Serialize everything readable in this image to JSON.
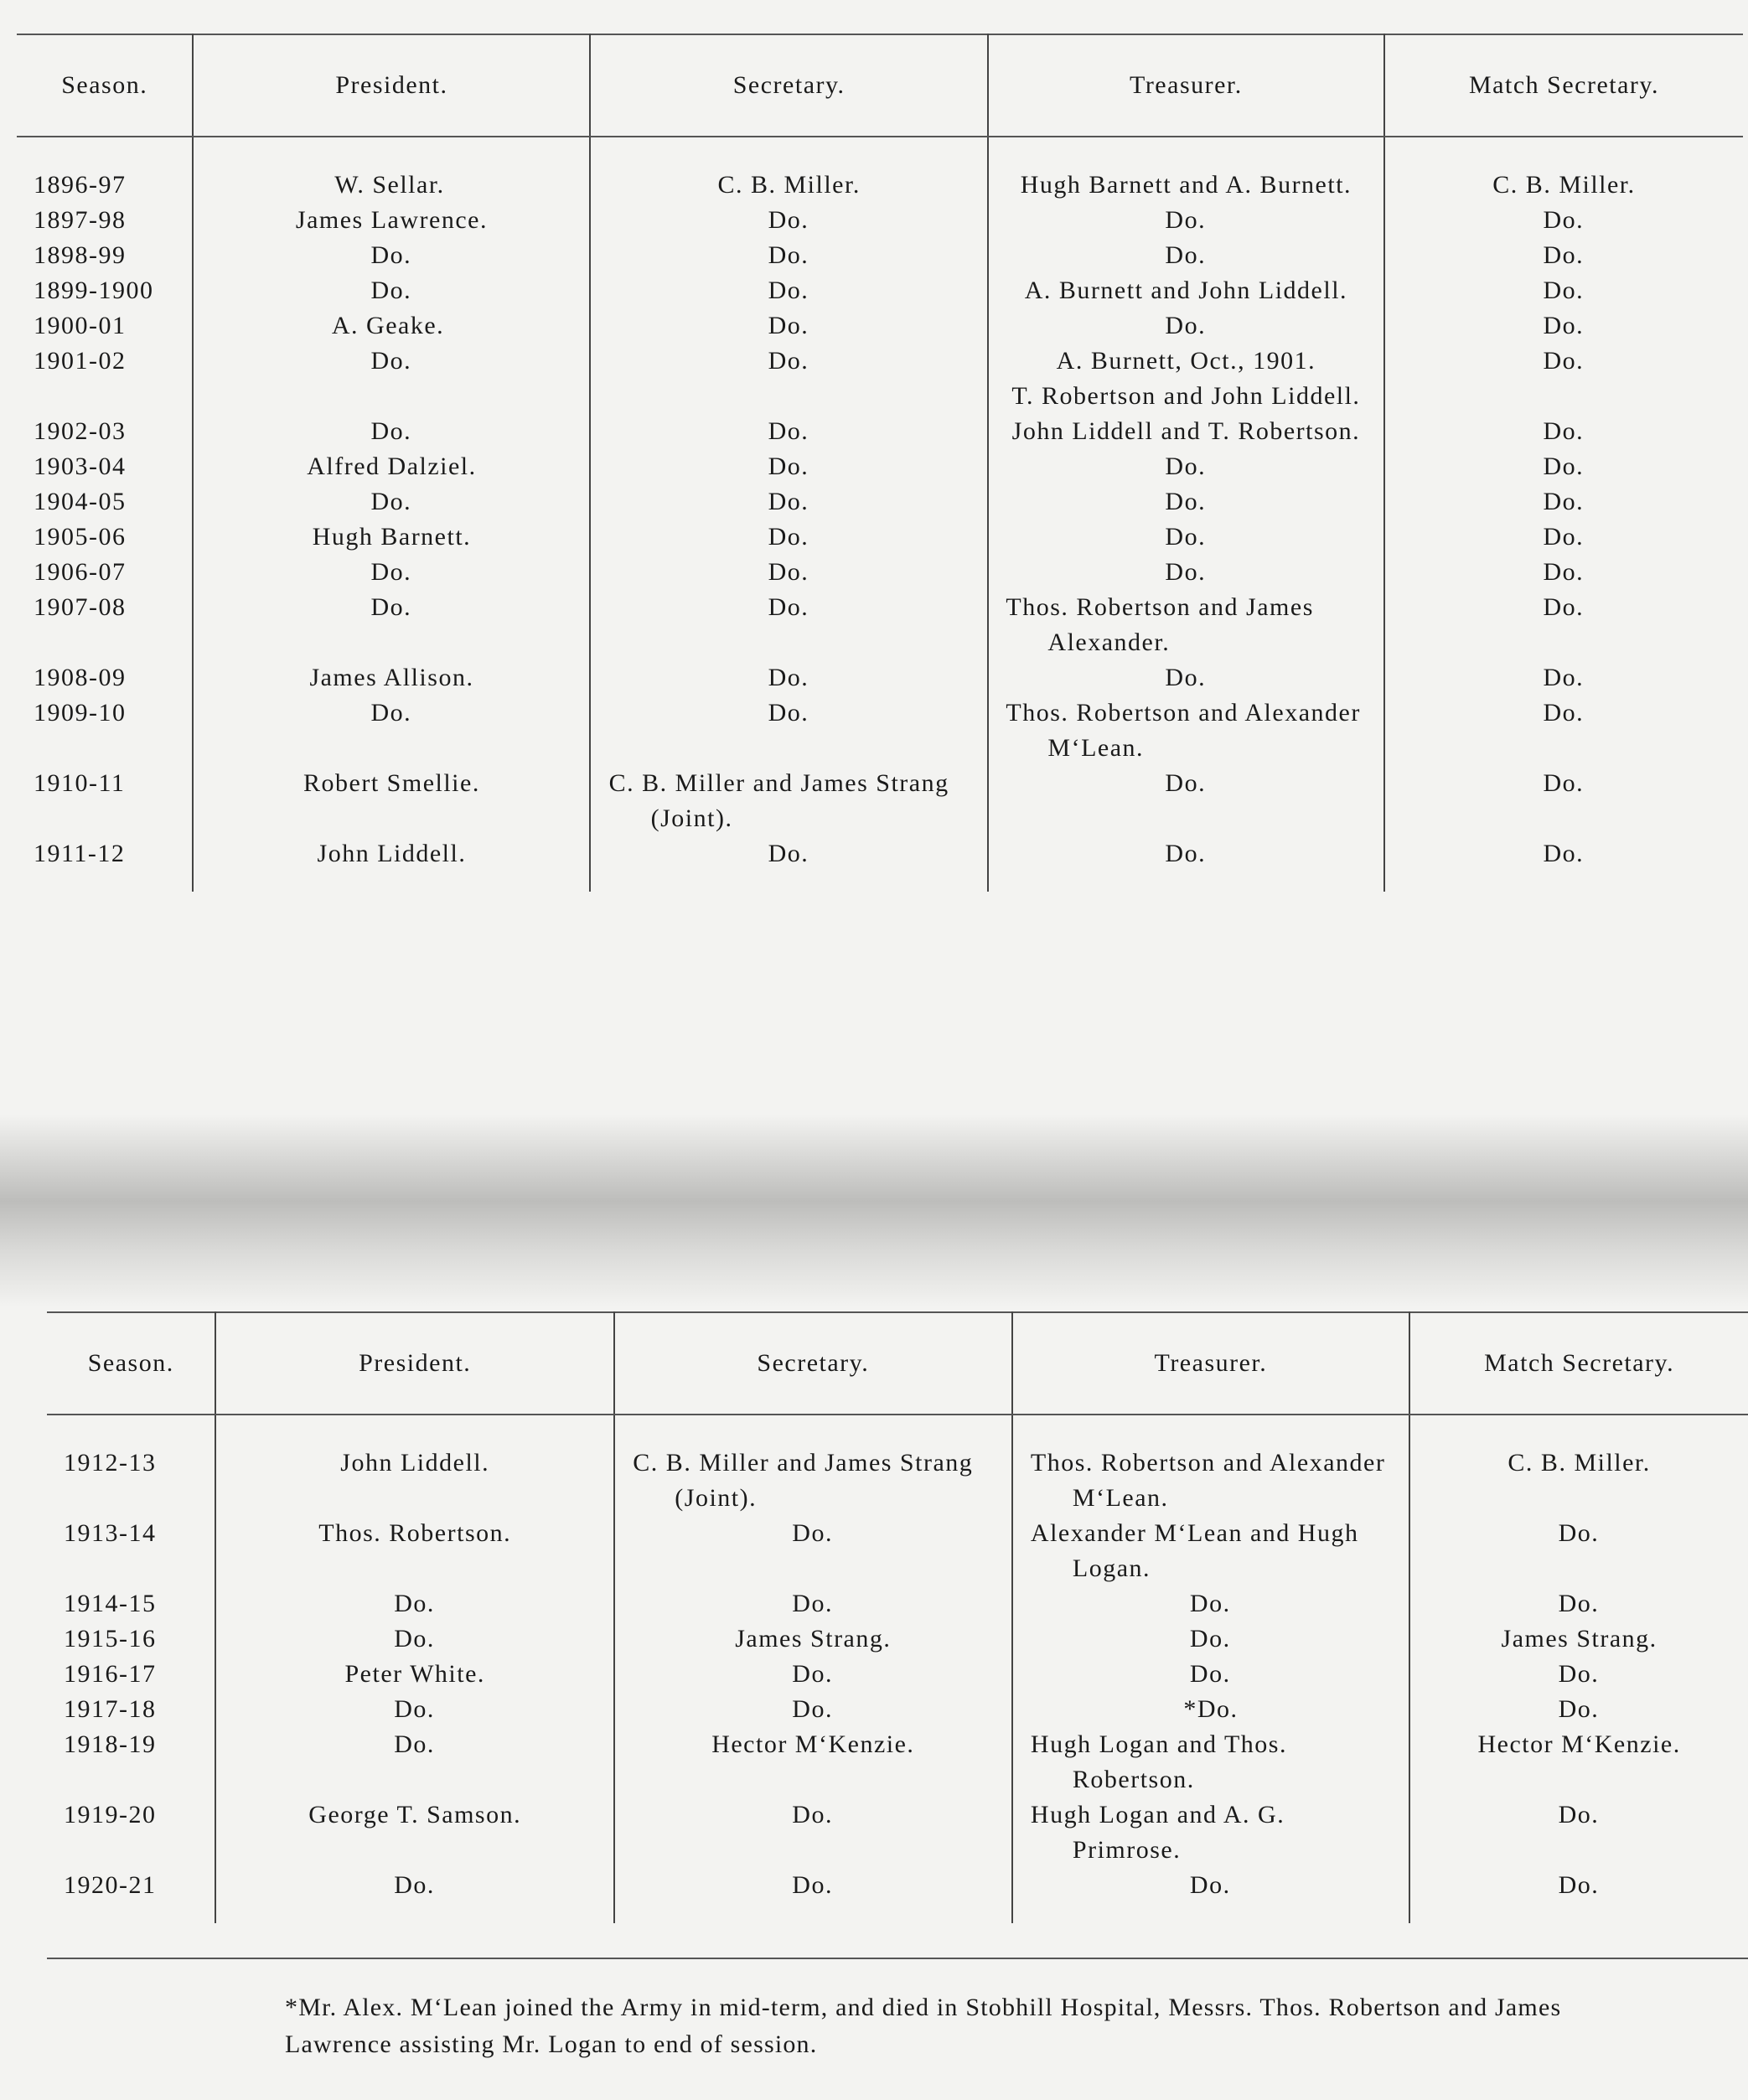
{
  "tables": [
    {
      "headers": [
        "Season.",
        "President.",
        "Secretary.",
        "Treasurer.",
        "Match Secretary."
      ],
      "rows": [
        [
          "1896-97",
          "W. Sellar.",
          "C. B. Miller.",
          "Hugh Barnett and A. Burnett.",
          "C. B. Miller."
        ],
        [
          "1897-98",
          "James Lawrence.",
          "Do.",
          "Do.",
          "Do."
        ],
        [
          "1898-99",
          "Do.",
          "Do.",
          "Do.",
          "Do."
        ],
        [
          "1899-1900",
          "Do.",
          "Do.",
          "A. Burnett and John Liddell.",
          "Do."
        ],
        [
          "1900-01",
          "A. Geake.",
          "Do.",
          "Do.",
          "Do."
        ],
        [
          "1901-02",
          "Do.",
          "Do.",
          [
            "A. Burnett, Oct., 1901.",
            "T. Robertson and John Liddell."
          ],
          "Do."
        ],
        [
          "1902-03",
          "Do.",
          "Do.",
          "John Liddell and T. Robertson.",
          "Do."
        ],
        [
          "1903-04",
          "Alfred Dalziel.",
          "Do.",
          "Do.",
          "Do."
        ],
        [
          "1904-05",
          "Do.",
          "Do.",
          "Do.",
          "Do."
        ],
        [
          "1905-06",
          "Hugh Barnett.",
          "Do.",
          "Do.",
          "Do."
        ],
        [
          "1906-07",
          "Do.",
          "Do.",
          "Do.",
          "Do."
        ],
        [
          "1907-08",
          "Do.",
          "Do.",
          "Thos. Robertson and James Alexander.",
          "Do."
        ],
        [
          "1908-09",
          "James Allison.",
          "Do.",
          "Do.",
          "Do."
        ],
        [
          "1909-10",
          "Do.",
          "Do.",
          "Thos. Robertson and Alexander M‘Lean.",
          "Do."
        ],
        [
          "1910-11",
          "Robert Smellie.",
          "C. B. Miller and James Strang (Joint).",
          "Do.",
          "Do."
        ],
        [
          "1911-12",
          "John Liddell.",
          "Do.",
          "Do.",
          "Do."
        ]
      ]
    },
    {
      "headers": [
        "Season.",
        "President.",
        "Secretary.",
        "Treasurer.",
        "Match Secretary."
      ],
      "rows": [
        [
          "1912-13",
          "John Liddell.",
          "C. B. Miller and James Strang (Joint).",
          "Thos. Robertson and Alexander M‘Lean.",
          "C. B. Miller."
        ],
        [
          "1913-14",
          "Thos. Robertson.",
          "Do.",
          "Alexander M‘Lean and Hugh Logan.",
          "Do."
        ],
        [
          "1914-15",
          "Do.",
          "Do.",
          "Do.",
          "Do."
        ],
        [
          "1915-16",
          "Do.",
          "James Strang.",
          "Do.",
          "James Strang."
        ],
        [
          "1916-17",
          "Peter White.",
          "Do.",
          "Do.",
          "Do."
        ],
        [
          "1917-18",
          "Do.",
          "Do.",
          "*Do.",
          "Do."
        ],
        [
          "1918-19",
          "Do.",
          "Hector M‘Kenzie.",
          "Hugh Logan and Thos. Robertson.",
          "Hector M‘Kenzie."
        ],
        [
          "1919-20",
          "George T. Samson.",
          "Do.",
          "Hugh Logan and A. G. Primrose.",
          "Do."
        ],
        [
          "1920-21",
          "Do.",
          "Do.",
          "Do.",
          "Do."
        ]
      ]
    }
  ],
  "footnote": "*Mr. Alex. M‘Lean joined the Army in mid-term, and died in Stobhill Hospital, Messrs. Thos. Robertson and James Lawrence assisting Mr. Logan to end of session."
}
